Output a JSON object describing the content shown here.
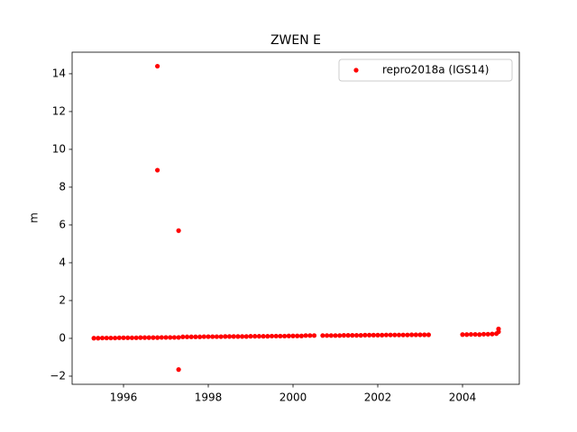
{
  "chart_data": {
    "type": "scatter",
    "title": "ZWEN E",
    "y_label": "m",
    "series": [
      {
        "name": "repro2018a (IGS14)",
        "color": "#ff0000",
        "x": [
          1995.3,
          1995.4,
          1995.5,
          1995.6,
          1995.7,
          1995.8,
          1995.9,
          1996.0,
          1996.1,
          1996.2,
          1996.3,
          1996.4,
          1996.5,
          1996.6,
          1996.7,
          1996.8,
          1996.9,
          1997.0,
          1997.1,
          1997.2,
          1997.3,
          1997.4,
          1997.5,
          1997.6,
          1997.7,
          1997.8,
          1997.9,
          1998.0,
          1998.1,
          1998.2,
          1998.3,
          1998.4,
          1998.5,
          1998.6,
          1998.7,
          1998.8,
          1998.9,
          1999.0,
          1999.1,
          1999.2,
          1999.3,
          1999.4,
          1999.5,
          1999.6,
          1999.7,
          1999.8,
          1999.9,
          2000.0,
          2000.1,
          2000.2,
          2000.3,
          2000.4,
          2000.5,
          2000.7,
          2000.8,
          2000.9,
          2001.0,
          2001.1,
          2001.2,
          2001.3,
          2001.4,
          2001.5,
          2001.6,
          2001.7,
          2001.8,
          2001.9,
          2002.0,
          2002.1,
          2002.2,
          2002.3,
          2002.4,
          2002.5,
          2002.6,
          2002.7,
          2002.8,
          2002.9,
          2003.0,
          2003.1,
          2003.2,
          2004.0,
          2004.1,
          2004.2,
          2004.3,
          2004.4,
          2004.5,
          2004.6,
          2004.7,
          2004.8,
          2004.85,
          2004.85,
          1996.8,
          1996.8,
          1997.3,
          1997.3
        ],
        "values": [
          0.01,
          0.01,
          0.02,
          0.02,
          0.02,
          0.02,
          0.03,
          0.03,
          0.03,
          0.03,
          0.03,
          0.04,
          0.04,
          0.04,
          0.04,
          0.04,
          0.05,
          0.05,
          0.05,
          0.05,
          0.05,
          0.08,
          0.08,
          0.08,
          0.08,
          0.08,
          0.09,
          0.09,
          0.09,
          0.09,
          0.09,
          0.1,
          0.1,
          0.1,
          0.1,
          0.1,
          0.1,
          0.11,
          0.11,
          0.11,
          0.11,
          0.11,
          0.12,
          0.12,
          0.12,
          0.12,
          0.13,
          0.13,
          0.13,
          0.13,
          0.15,
          0.15,
          0.15,
          0.15,
          0.15,
          0.15,
          0.15,
          0.15,
          0.16,
          0.16,
          0.16,
          0.16,
          0.16,
          0.17,
          0.17,
          0.17,
          0.17,
          0.17,
          0.18,
          0.18,
          0.18,
          0.18,
          0.18,
          0.18,
          0.19,
          0.19,
          0.19,
          0.19,
          0.19,
          0.2,
          0.2,
          0.21,
          0.21,
          0.2,
          0.22,
          0.22,
          0.23,
          0.25,
          0.5,
          0.35,
          14.4,
          8.9,
          5.7,
          -1.65
        ]
      }
    ],
    "xlim": [
      1994.787,
      2005.34
    ],
    "xticks": [
      1996,
      1998,
      2000,
      2002,
      2004
    ],
    "ylim": [
      -2.43,
      15.14
    ],
    "yticks": [
      {
        "value": -2,
        "label": "−2"
      },
      0,
      2,
      4,
      6,
      8,
      10,
      12,
      14
    ],
    "legend": "upper right",
    "grid": false
  }
}
